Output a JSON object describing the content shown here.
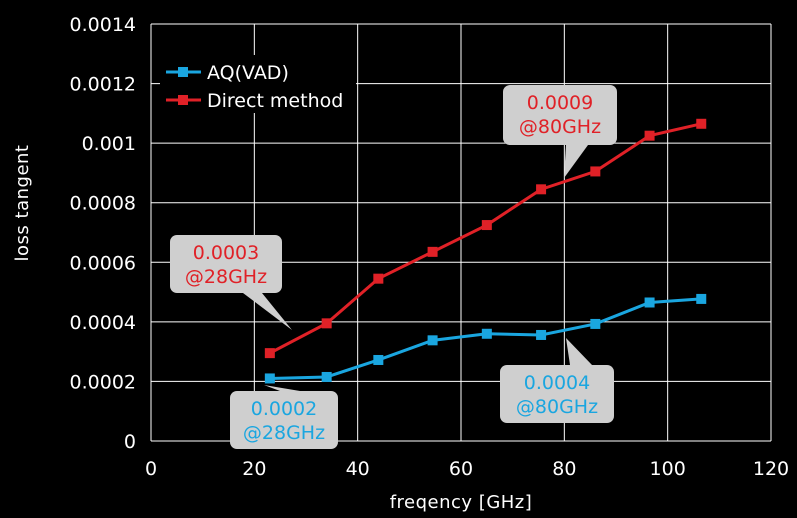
{
  "chart_data": {
    "type": "line",
    "title": "",
    "xlabel": "freqency [GHz]",
    "ylabel": "loss tangent",
    "xlim": [
      0,
      120
    ],
    "ylim": [
      0,
      0.0014
    ],
    "x_ticks": [
      "0",
      "20",
      "40",
      "60",
      "80",
      "100",
      "120"
    ],
    "y_ticks": [
      "0",
      "0.0002",
      "0.0004",
      "0.0006",
      "0.0008",
      "0.001",
      "0.0012",
      "0.0014"
    ],
    "grid": true,
    "legend_position": "top-left",
    "series": [
      {
        "name": "AQ(VAD)",
        "color": "#1aa6e0",
        "x": [
          23,
          34,
          44,
          54.5,
          65,
          75.5,
          86,
          96.5,
          106.5
        ],
        "y": [
          0.00021,
          0.000215,
          0.000272,
          0.000338,
          0.00036,
          0.000356,
          0.000393,
          0.000465,
          0.000477
        ]
      },
      {
        "name": "Direct method",
        "color": "#e02127",
        "x": [
          23,
          34,
          44,
          54.5,
          65,
          75.5,
          86,
          96.5,
          106.5
        ],
        "y": [
          0.000295,
          0.000395,
          0.000545,
          0.000635,
          0.000725,
          0.000845,
          0.000905,
          0.001025,
          0.001065
        ]
      }
    ],
    "annotations": [
      {
        "text": [
          "0.0003",
          "@28GHz"
        ],
        "color": "#e02127",
        "target": [
          27,
          0.000335
        ]
      },
      {
        "text": [
          "0.0009",
          "@80GHz"
        ],
        "color": "#e02127",
        "target": [
          80,
          0.00088
        ]
      },
      {
        "text": [
          "0.0002",
          "@28GHz"
        ],
        "color": "#1aa6e0",
        "target": [
          28,
          0.000215
        ]
      },
      {
        "text": [
          "0.0004",
          "@80GHz"
        ],
        "color": "#1aa6e0",
        "target": [
          80,
          0.00037
        ]
      }
    ]
  }
}
